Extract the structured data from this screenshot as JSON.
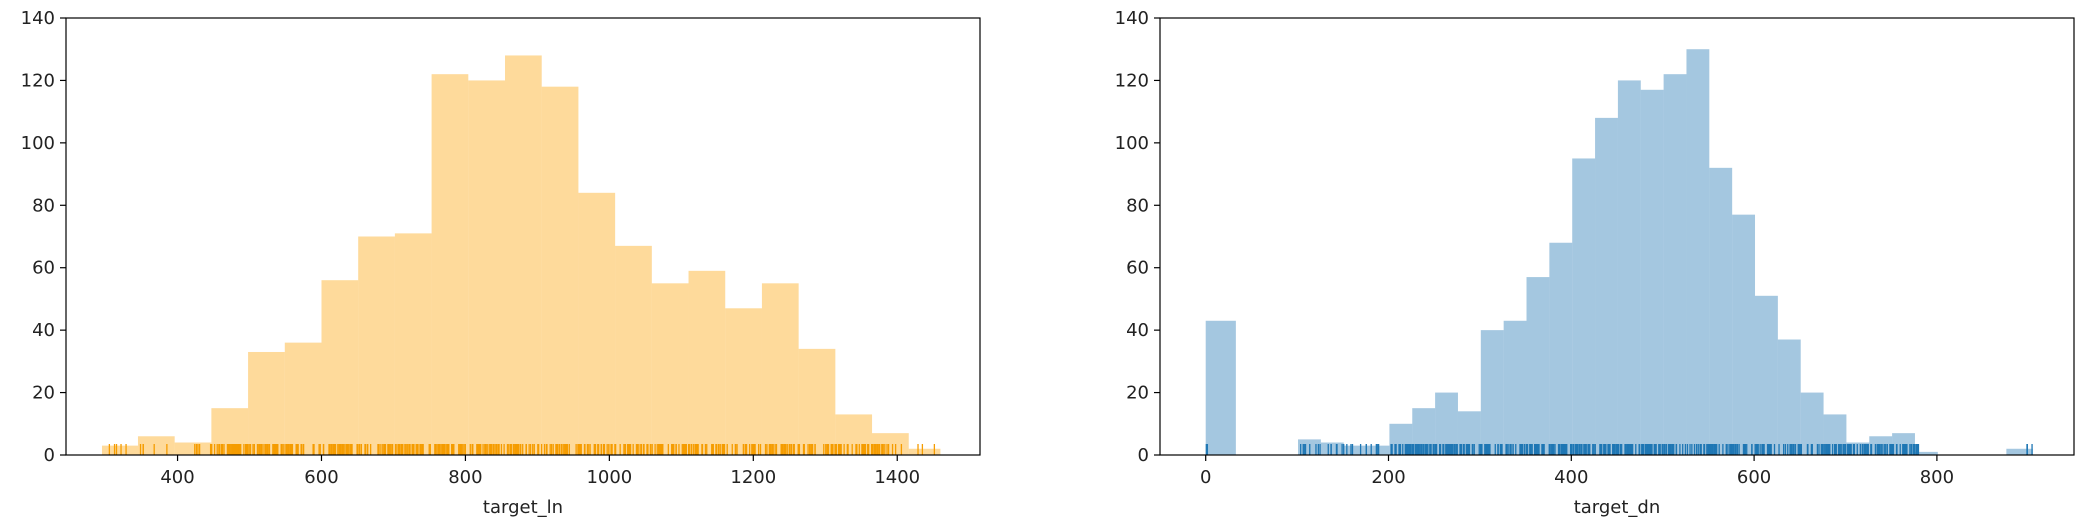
{
  "chart_data": [
    {
      "type": "bar",
      "subtype": "histogram",
      "xlabel": "target_ln",
      "ylabel": "",
      "xlim": [
        245,
        1515
      ],
      "ylim": [
        0,
        140
      ],
      "xticks": [
        "400",
        "600",
        "800",
        "1000",
        "1200",
        "1400"
      ],
      "yticks": [
        "0",
        "20",
        "40",
        "60",
        "80",
        "100",
        "120",
        "140"
      ],
      "bar_color": "#fdb537",
      "bar_alpha": 0.5,
      "rug_color": "#f59c00",
      "bins": [
        {
          "x0": 295,
          "x1": 345,
          "count": 3
        },
        {
          "x0": 345,
          "x1": 396,
          "count": 6
        },
        {
          "x0": 396,
          "x1": 447,
          "count": 4
        },
        {
          "x0": 447,
          "x1": 498,
          "count": 15
        },
        {
          "x0": 498,
          "x1": 549,
          "count": 33
        },
        {
          "x0": 549,
          "x1": 600,
          "count": 36
        },
        {
          "x0": 600,
          "x1": 651,
          "count": 56
        },
        {
          "x0": 651,
          "x1": 702,
          "count": 70
        },
        {
          "x0": 702,
          "x1": 753,
          "count": 71
        },
        {
          "x0": 753,
          "x1": 804,
          "count": 122
        },
        {
          "x0": 804,
          "x1": 855,
          "count": 120
        },
        {
          "x0": 855,
          "x1": 906,
          "count": 128
        },
        {
          "x0": 906,
          "x1": 957,
          "count": 118
        },
        {
          "x0": 957,
          "x1": 1008,
          "count": 84
        },
        {
          "x0": 1008,
          "x1": 1059,
          "count": 67
        },
        {
          "x0": 1059,
          "x1": 1110,
          "count": 55
        },
        {
          "x0": 1110,
          "x1": 1161,
          "count": 59
        },
        {
          "x0": 1161,
          "x1": 1212,
          "count": 47
        },
        {
          "x0": 1212,
          "x1": 1263,
          "count": 55
        },
        {
          "x0": 1263,
          "x1": 1314,
          "count": 34
        },
        {
          "x0": 1314,
          "x1": 1365,
          "count": 13
        },
        {
          "x0": 1365,
          "x1": 1416,
          "count": 7
        },
        {
          "x0": 1416,
          "x1": 1460,
          "count": 2
        }
      ],
      "rug_ranges": [
        [
          295,
          440,
          14
        ],
        [
          445,
          1400,
          520
        ],
        [
          1400,
          1460,
          4
        ]
      ]
    },
    {
      "type": "bar",
      "subtype": "histogram",
      "xlabel": "target_dn",
      "ylabel": "",
      "xlim": [
        -50,
        950
      ],
      "ylim": [
        0,
        140
      ],
      "xticks": [
        "0",
        "200",
        "400",
        "600",
        "800"
      ],
      "yticks": [
        "0",
        "20",
        "40",
        "60",
        "80",
        "100",
        "120",
        "140"
      ],
      "bar_color": "#4a8fc2",
      "bar_alpha": 0.5,
      "rug_color": "#1f77b4",
      "bins": [
        {
          "x0": 0,
          "x1": 33,
          "count": 43
        },
        {
          "x0": 101,
          "x1": 126,
          "count": 5
        },
        {
          "x0": 126,
          "x1": 151,
          "count": 4
        },
        {
          "x0": 151,
          "x1": 176,
          "count": 3
        },
        {
          "x0": 176,
          "x1": 201,
          "count": 3
        },
        {
          "x0": 201,
          "x1": 226,
          "count": 10
        },
        {
          "x0": 226,
          "x1": 251,
          "count": 15
        },
        {
          "x0": 251,
          "x1": 276,
          "count": 20
        },
        {
          "x0": 276,
          "x1": 301,
          "count": 14
        },
        {
          "x0": 301,
          "x1": 326,
          "count": 40
        },
        {
          "x0": 326,
          "x1": 351,
          "count": 43
        },
        {
          "x0": 351,
          "x1": 376,
          "count": 57
        },
        {
          "x0": 376,
          "x1": 401,
          "count": 68
        },
        {
          "x0": 401,
          "x1": 426,
          "count": 95
        },
        {
          "x0": 426,
          "x1": 451,
          "count": 108
        },
        {
          "x0": 451,
          "x1": 476,
          "count": 120
        },
        {
          "x0": 476,
          "x1": 501,
          "count": 117
        },
        {
          "x0": 501,
          "x1": 526,
          "count": 122
        },
        {
          "x0": 526,
          "x1": 551,
          "count": 130
        },
        {
          "x0": 551,
          "x1": 576,
          "count": 92
        },
        {
          "x0": 576,
          "x1": 601,
          "count": 77
        },
        {
          "x0": 601,
          "x1": 626,
          "count": 51
        },
        {
          "x0": 626,
          "x1": 651,
          "count": 37
        },
        {
          "x0": 651,
          "x1": 676,
          "count": 20
        },
        {
          "x0": 676,
          "x1": 701,
          "count": 13
        },
        {
          "x0": 701,
          "x1": 726,
          "count": 4
        },
        {
          "x0": 726,
          "x1": 751,
          "count": 6
        },
        {
          "x0": 751,
          "x1": 776,
          "count": 7
        },
        {
          "x0": 776,
          "x1": 801,
          "count": 1
        },
        {
          "x0": 876,
          "x1": 905,
          "count": 2
        }
      ],
      "rug_ranges": [
        [
          0,
          2,
          2
        ],
        [
          103,
          200,
          26
        ],
        [
          200,
          780,
          520
        ],
        [
          890,
          905,
          3
        ]
      ]
    }
  ]
}
